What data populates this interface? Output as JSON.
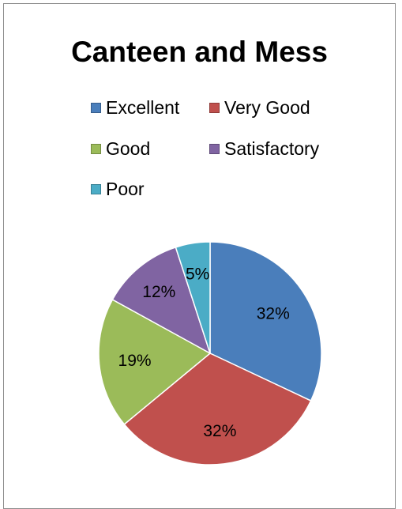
{
  "chart_data": {
    "type": "pie",
    "title": "Canteen and Mess",
    "categories": [
      "Excellent",
      "Very Good",
      "Good",
      "Satisfactory",
      "Poor"
    ],
    "values": [
      32,
      32,
      19,
      12,
      5
    ],
    "labels": [
      "32%",
      "32%",
      "19%",
      "12%",
      "5%"
    ],
    "colors": [
      "#4a7ebb",
      "#c0504d",
      "#9bbb59",
      "#8064a2",
      "#4bacc6"
    ],
    "legend_position": "top"
  }
}
